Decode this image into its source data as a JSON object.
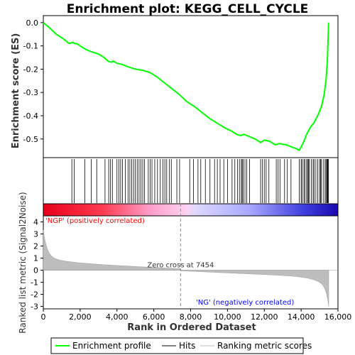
{
  "chart_data": {
    "type": "line",
    "title": "Enrichment plot: KEGG_CELL_CYCLE",
    "xlabel": "Rank in Ordered Dataset",
    "es_ylabel": "Enrichment score (ES)",
    "metric_ylabel": "Ranked list metric (Signal2Noise)",
    "xlim": [
      0,
      16000
    ],
    "es_ylim": [
      -0.58,
      0.03
    ],
    "metric_ylim": [
      -3.2,
      4.5
    ],
    "x_ticks": [
      0,
      2000,
      4000,
      6000,
      8000,
      10000,
      12000,
      14000,
      16000
    ],
    "x_tick_labels": [
      "0",
      "2,000",
      "4,000",
      "6,000",
      "8,000",
      "10,000",
      "12,000",
      "14,000",
      "16,000"
    ],
    "es_ticks": [
      0.0,
      -0.1,
      -0.2,
      -0.3,
      -0.4,
      -0.5
    ],
    "es_tick_labels": [
      "0.0",
      "-0.1",
      "-0.2",
      "-0.3",
      "-0.4",
      "-0.5"
    ],
    "metric_ticks": [
      4,
      3,
      2,
      1,
      0,
      -1,
      -2,
      -3
    ],
    "metric_tick_labels": [
      "4",
      "3",
      "2",
      "1",
      "0",
      "-1",
      "-2",
      "-3"
    ],
    "n_genes": 15500,
    "zero_cross": 7454,
    "zero_cross_label": "Zero cross at 7454",
    "pos_label": "'NGP' (positively correlated)",
    "neg_label": "'NG' (negatively correlated)",
    "pos_color": "#ff0000",
    "neg_color": "#0000ff",
    "es_color": "#00ff00",
    "es_points": [
      [
        0,
        0.0
      ],
      [
        300,
        -0.02
      ],
      [
        700,
        -0.05
      ],
      [
        1100,
        -0.07
      ],
      [
        1400,
        -0.09
      ],
      [
        1600,
        -0.085
      ],
      [
        1700,
        -0.09
      ],
      [
        1800,
        -0.09
      ],
      [
        2000,
        -0.1
      ],
      [
        2300,
        -0.115
      ],
      [
        2600,
        -0.125
      ],
      [
        3000,
        -0.135
      ],
      [
        3300,
        -0.15
      ],
      [
        3500,
        -0.165
      ],
      [
        3700,
        -0.17
      ],
      [
        3800,
        -0.165
      ],
      [
        4000,
        -0.175
      ],
      [
        4300,
        -0.18
      ],
      [
        4600,
        -0.19
      ],
      [
        5000,
        -0.2
      ],
      [
        5400,
        -0.205
      ],
      [
        5800,
        -0.215
      ],
      [
        6200,
        -0.235
      ],
      [
        6600,
        -0.26
      ],
      [
        7000,
        -0.285
      ],
      [
        7400,
        -0.31
      ],
      [
        7800,
        -0.34
      ],
      [
        8200,
        -0.36
      ],
      [
        8600,
        -0.385
      ],
      [
        9000,
        -0.41
      ],
      [
        9400,
        -0.43
      ],
      [
        9800,
        -0.45
      ],
      [
        10200,
        -0.465
      ],
      [
        10500,
        -0.48
      ],
      [
        10700,
        -0.485
      ],
      [
        10900,
        -0.48
      ],
      [
        11200,
        -0.49
      ],
      [
        11500,
        -0.5
      ],
      [
        11800,
        -0.515
      ],
      [
        12000,
        -0.505
      ],
      [
        12300,
        -0.51
      ],
      [
        12600,
        -0.525
      ],
      [
        12800,
        -0.52
      ],
      [
        13200,
        -0.525
      ],
      [
        13500,
        -0.535
      ],
      [
        13700,
        -0.54
      ],
      [
        13900,
        -0.548
      ],
      [
        14100,
        -0.52
      ],
      [
        14300,
        -0.48
      ],
      [
        14500,
        -0.45
      ],
      [
        14700,
        -0.43
      ],
      [
        14900,
        -0.4
      ],
      [
        15100,
        -0.36
      ],
      [
        15250,
        -0.31
      ],
      [
        15350,
        -0.25
      ],
      [
        15420,
        -0.17
      ],
      [
        15460,
        -0.08
      ],
      [
        15490,
        0.0
      ]
    ],
    "hits": [
      1550,
      1680,
      2250,
      2600,
      2900,
      3350,
      3550,
      3650,
      3750,
      4000,
      4100,
      4200,
      4300,
      4450,
      4600,
      4700,
      4800,
      4900,
      5000,
      5100,
      5200,
      5300,
      5400,
      5500,
      5700,
      5800,
      5900,
      6050,
      6200,
      6350,
      6500,
      6600,
      6700,
      6850,
      6950,
      7250,
      7400,
      7950,
      8150,
      8400,
      8550,
      8800,
      9050,
      9300,
      9450,
      9600,
      9800,
      10000,
      10250,
      10400,
      10550,
      10650,
      10750,
      10800,
      10850,
      10950,
      11050,
      11200,
      11800,
      11900,
      12000,
      12100,
      12250,
      12650,
      12750,
      12850,
      13100,
      13250,
      13450,
      13900,
      14000,
      14050,
      14150,
      14200,
      14300,
      14350,
      14400,
      14450,
      14550,
      14650,
      14700,
      14800,
      14900,
      15000,
      15050,
      15100,
      15200,
      15300,
      15350,
      15400,
      15430,
      15460,
      15480
    ]
  },
  "legend": {
    "es_label": "Enrichment profile",
    "hits_label": "Hits",
    "metric_label": "Ranking metric scores"
  }
}
